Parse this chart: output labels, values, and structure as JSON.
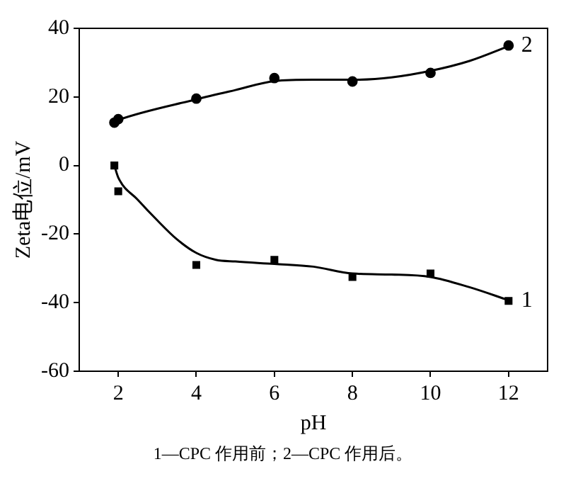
{
  "chart_data": {
    "type": "scatter",
    "xlabel": "pH",
    "ylabel": "Zeta电位/mV",
    "annotations": [
      "1—CPC 作用前；2—CPC 作用后。"
    ],
    "xlim": [
      1,
      13
    ],
    "xticks": [
      2,
      4,
      6,
      8,
      10,
      12
    ],
    "ylim": [
      -60,
      40
    ],
    "yticks": [
      -60,
      -40,
      -20,
      0,
      20,
      40
    ],
    "grid": false,
    "legend": false,
    "series": [
      {
        "name": "1",
        "type": "scatter",
        "marker": "square",
        "color": "#000000",
        "x": [
          1.9,
          2,
          4,
          6,
          8,
          10,
          12
        ],
        "values": [
          0,
          -7.5,
          -29,
          -27.5,
          -32.5,
          -31.5,
          -39.5
        ]
      },
      {
        "name": "2",
        "type": "scatter",
        "marker": "circle",
        "color": "#000000",
        "x": [
          1.9,
          2,
          4,
          6,
          8,
          10,
          12
        ],
        "values": [
          12.5,
          13.5,
          19.5,
          25.5,
          24.5,
          27,
          35
        ]
      },
      {
        "type": "line",
        "marker": "none",
        "color": "#000000",
        "x": [
          1.9,
          2,
          2.5,
          3,
          3.5,
          4,
          4.5,
          5,
          6,
          7,
          8,
          9,
          10,
          11,
          12
        ],
        "values": [
          0,
          -3.5,
          -10,
          -16,
          -21.5,
          -25.5,
          -27.5,
          -28,
          -28.7,
          -29.5,
          -31.5,
          -31.8,
          -32.5,
          -35.5,
          -39.3
        ]
      },
      {
        "type": "line",
        "marker": "none",
        "color": "#000000",
        "x": [
          1.9,
          2,
          4,
          5,
          6,
          7,
          8,
          9,
          10,
          11,
          12
        ],
        "values": [
          12.8,
          13.3,
          19.3,
          22,
          24.6,
          25,
          25,
          25.7,
          27.6,
          30.5,
          34.8
        ]
      }
    ]
  }
}
